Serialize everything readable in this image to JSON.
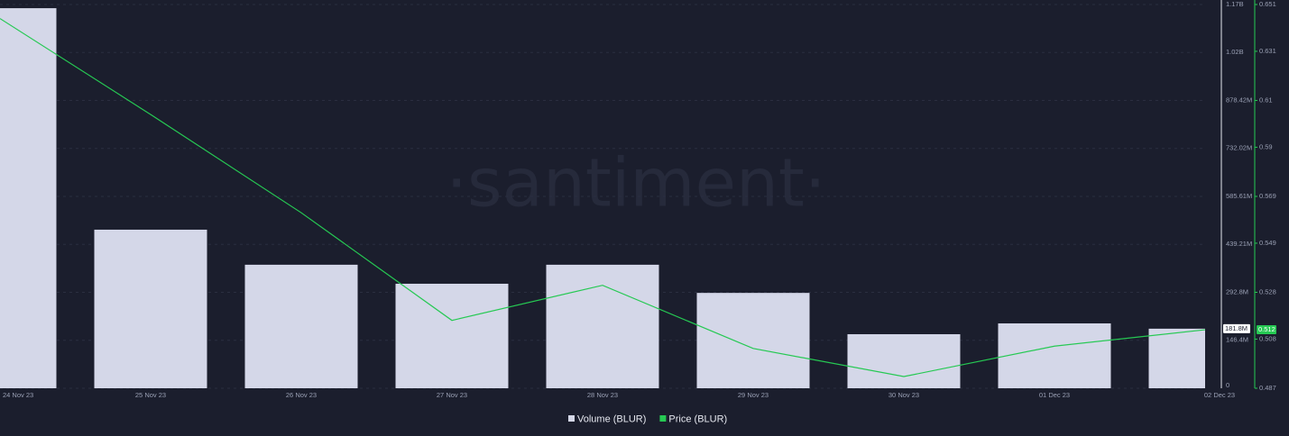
{
  "chart_data": {
    "type": "bar_line",
    "watermark": "·santiment·",
    "categories": [
      "24 Nov 23",
      "25 Nov 23",
      "26 Nov 23",
      "27 Nov 23",
      "28 Nov 23",
      "29 Nov 23",
      "30 Nov 23",
      "01 Dec 23",
      "02 Dec 23"
    ],
    "series": [
      {
        "name": "Volume (BLUR)",
        "type": "bar",
        "color": "#d4d7e8",
        "values": [
          1160000000,
          484000000,
          377000000,
          319000000,
          377000000,
          291000000,
          165000000,
          198000000,
          181800000
        ],
        "value_labels": [
          null,
          null,
          null,
          null,
          null,
          null,
          null,
          null,
          "181.8M"
        ]
      },
      {
        "name": "Price (BLUR)",
        "type": "line",
        "color": "#26c953",
        "axis": "y2",
        "values": [
          0.645,
          0.604,
          0.562,
          0.516,
          0.531,
          0.504,
          0.492,
          0.505,
          0.512
        ]
      }
    ],
    "ylim": [
      0,
      1171220000
    ],
    "yticks": [
      {
        "value": 0,
        "label": "0"
      },
      {
        "value": 146400000,
        "label": "146.4M"
      },
      {
        "value": 292800000,
        "label": "292.8M"
      },
      {
        "value": 439210000,
        "label": "439.21M"
      },
      {
        "value": 585610000,
        "label": "585.61M"
      },
      {
        "value": 732020000,
        "label": "732.02M"
      },
      {
        "value": 878420000,
        "label": "878.42M"
      },
      {
        "value": 1024820000,
        "label": "1.02B"
      },
      {
        "value": 1171220000,
        "label": "1.17B"
      }
    ],
    "y2lim": [
      0.487,
      0.651
    ],
    "y2ticks": [
      0.487,
      0.508,
      0.528,
      0.549,
      0.569,
      0.59,
      0.61,
      0.631,
      0.651
    ],
    "grid": true
  }
}
